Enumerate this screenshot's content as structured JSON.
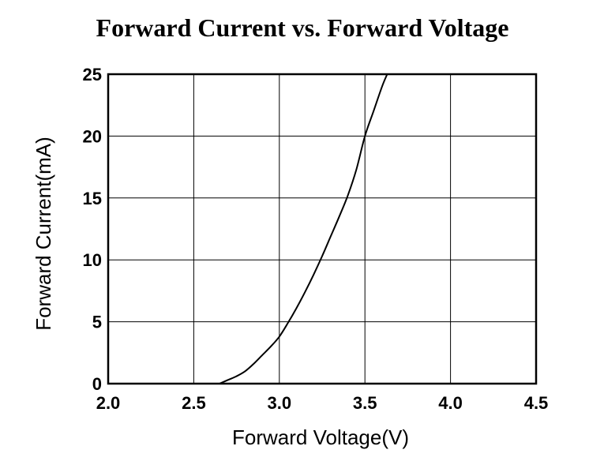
{
  "chart_data": {
    "type": "line",
    "title": "Forward Current vs. Forward Voltage",
    "xlabel": "Forward Voltage(V)",
    "ylabel": "Forward Current(mA)",
    "xlim": [
      2.0,
      4.5
    ],
    "ylim": [
      0,
      25
    ],
    "grid": true,
    "x_ticks": [
      2.0,
      2.5,
      3.0,
      3.5,
      4.0,
      4.5
    ],
    "x_tick_labels": [
      "2.0",
      "2.5",
      "3.0",
      "3.5",
      "4.0",
      "4.5"
    ],
    "y_ticks": [
      0,
      5,
      10,
      15,
      20,
      25
    ],
    "y_tick_labels": [
      "0",
      "5",
      "10",
      "15",
      "20",
      "25"
    ],
    "series": [
      {
        "name": "Forward Current",
        "x": [
          2.65,
          2.7,
          2.75,
          2.8,
          2.85,
          2.9,
          2.95,
          3.0,
          3.05,
          3.1,
          3.15,
          3.2,
          3.25,
          3.3,
          3.35,
          3.4,
          3.45,
          3.5,
          3.55,
          3.6,
          3.63
        ],
        "y": [
          0.0,
          0.3,
          0.6,
          1.0,
          1.6,
          2.3,
          3.0,
          3.8,
          4.9,
          6.1,
          7.4,
          8.8,
          10.3,
          11.9,
          13.5,
          15.2,
          17.3,
          20.0,
          22.0,
          24.0,
          25.0
        ]
      }
    ],
    "colors": {
      "line": "#000000",
      "grid": "#000000",
      "frame": "#000000"
    }
  }
}
